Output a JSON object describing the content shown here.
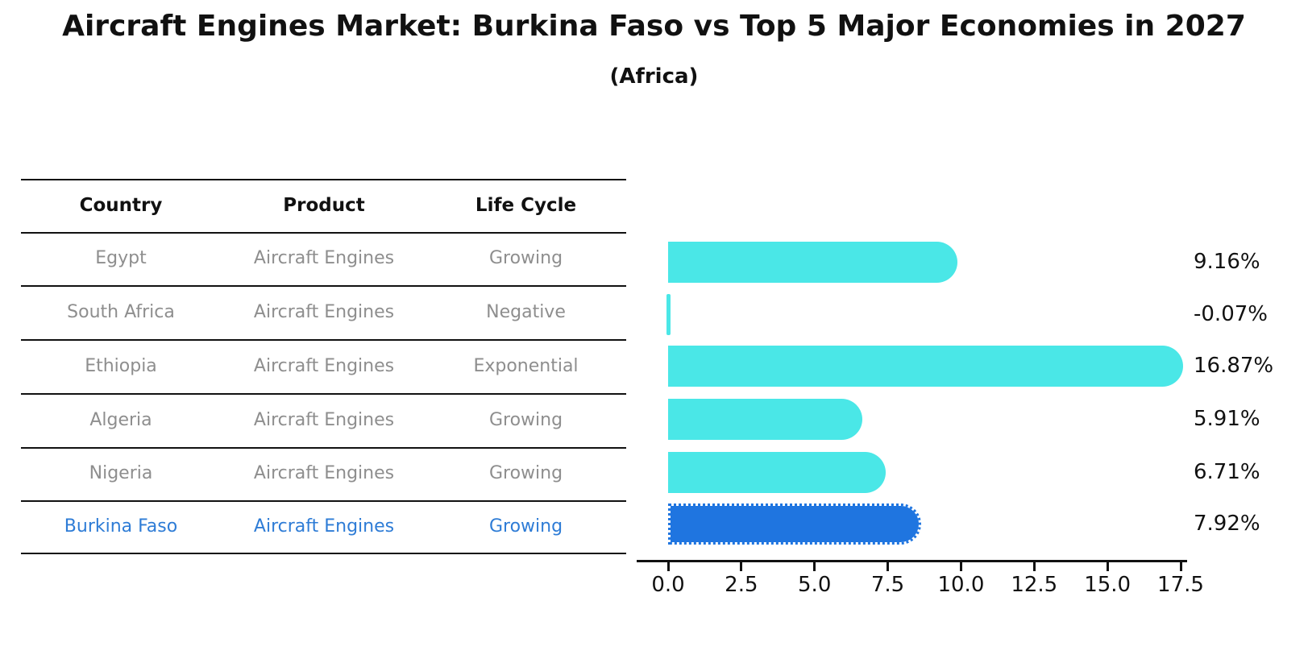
{
  "title": "Aircraft Engines Market: Burkina Faso vs Top 5 Major Economies in 2027",
  "subtitle": "(Africa)",
  "table": {
    "headers": [
      "Country",
      "Product",
      "Life Cycle"
    ],
    "rows": [
      {
        "country": "Egypt",
        "product": "Aircraft Engines",
        "life_cycle": "Growing",
        "highlighted": false
      },
      {
        "country": "South Africa",
        "product": "Aircraft Engines",
        "life_cycle": "Negative",
        "highlighted": false
      },
      {
        "country": "Ethiopia",
        "product": "Aircraft Engines",
        "life_cycle": "Exponential",
        "highlighted": false
      },
      {
        "country": "Algeria",
        "product": "Aircraft Engines",
        "life_cycle": "Growing",
        "highlighted": false
      },
      {
        "country": "Nigeria",
        "product": "Aircraft Engines",
        "life_cycle": "Growing",
        "highlighted": false
      },
      {
        "country": "Burkina Faso",
        "product": "Aircraft Engines",
        "life_cycle": "Growing",
        "highlighted": true
      }
    ]
  },
  "chart_data": {
    "type": "bar",
    "orientation": "horizontal",
    "categories": [
      "Egypt",
      "South Africa",
      "Ethiopia",
      "Algeria",
      "Nigeria",
      "Burkina Faso"
    ],
    "values": [
      9.16,
      -0.07,
      16.87,
      5.91,
      6.71,
      7.92
    ],
    "value_labels": [
      "9.16%",
      "-0.07%",
      "16.87%",
      "5.91%",
      "6.71%",
      "7.92%"
    ],
    "x_ticks": [
      0,
      2.5,
      5,
      7.5,
      10,
      12.5,
      15,
      17.5
    ],
    "x_tick_labels": [
      "0.0",
      "2.5",
      "5.0",
      "7.5",
      "10.0",
      "12.5",
      "15.0",
      "17.5"
    ],
    "xlim": [
      0,
      17.5
    ],
    "grid": false,
    "legend": null,
    "bar_color": "#4AE7E7",
    "highlight_color": "#1F75E0",
    "highlight_index": 5
  },
  "colors": {
    "text": "#111111",
    "muted_row_text": "#8E8E8E",
    "highlight_text": "#2E7CD6",
    "axis": "#111111"
  }
}
